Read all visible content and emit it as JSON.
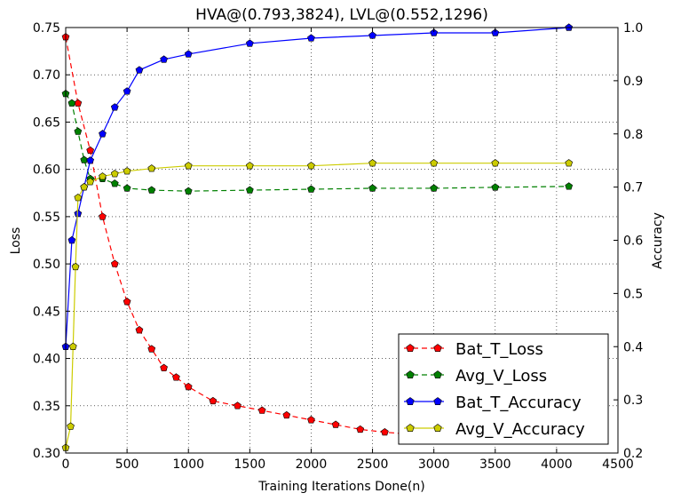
{
  "chart_data": {
    "type": "line",
    "title": "HVA@(0.793,3824), LVL@(0.552,1296)",
    "xlabel": "Training Iterations Done(n)",
    "ylabel": "Loss",
    "y2label": "Accuracy",
    "xlim": [
      0,
      4500
    ],
    "ylim": [
      0.3,
      0.75
    ],
    "y2lim": [
      0.2,
      1.0
    ],
    "x_ticks": [
      0,
      500,
      1000,
      1500,
      2000,
      2500,
      3000,
      3500,
      4000,
      4500
    ],
    "y_ticks": [
      0.3,
      0.35,
      0.4,
      0.45,
      0.5,
      0.55,
      0.6,
      0.65,
      0.7,
      0.75
    ],
    "y2_ticks": [
      0.2,
      0.3,
      0.4,
      0.5,
      0.6,
      0.7,
      0.8,
      0.9,
      1.0
    ],
    "grid": true,
    "legend_position": "bottom-right",
    "series": [
      {
        "name": "Bat_T_Loss",
        "axis": "left",
        "color": "#ff0000",
        "line_style": "dashed",
        "marker": "pentagon",
        "x": [
          0,
          100,
          200,
          300,
          400,
          500,
          600,
          700,
          800,
          900,
          1000,
          1200,
          1400,
          1600,
          1800,
          2000,
          2200,
          2400,
          2600,
          2800
        ],
        "y": [
          0.74,
          0.67,
          0.62,
          0.55,
          0.5,
          0.46,
          0.43,
          0.41,
          0.39,
          0.38,
          0.37,
          0.355,
          0.35,
          0.345,
          0.34,
          0.335,
          0.33,
          0.325,
          0.322,
          0.32
        ]
      },
      {
        "name": "Avg_V_Loss",
        "axis": "left",
        "color": "#008000",
        "line_style": "dashed",
        "marker": "pentagon",
        "x": [
          0,
          50,
          100,
          150,
          200,
          300,
          400,
          500,
          700,
          1000,
          1500,
          2000,
          2500,
          3000,
          3500,
          4100
        ],
        "y": [
          0.68,
          0.67,
          0.64,
          0.61,
          0.59,
          0.59,
          0.585,
          0.58,
          0.578,
          0.577,
          0.578,
          0.579,
          0.58,
          0.58,
          0.581,
          0.582
        ]
      },
      {
        "name": "Bat_T_Accuracy",
        "axis": "right",
        "color": "#0000ff",
        "line_style": "solid",
        "marker": "pentagon",
        "x": [
          0,
          50,
          100,
          150,
          200,
          300,
          400,
          500,
          600,
          800,
          1000,
          1500,
          2000,
          2500,
          3000,
          3500,
          4100
        ],
        "y": [
          0.4,
          0.6,
          0.65,
          0.7,
          0.75,
          0.8,
          0.85,
          0.88,
          0.92,
          0.94,
          0.95,
          0.97,
          0.98,
          0.985,
          0.99,
          0.99,
          1.0
        ]
      },
      {
        "name": "Avg_V_Accuracy",
        "axis": "right",
        "color": "#cccc00",
        "line_style": "solid",
        "marker": "pentagon",
        "x": [
          0,
          40,
          60,
          80,
          100,
          150,
          200,
          300,
          400,
          500,
          700,
          1000,
          1500,
          2000,
          2500,
          3000,
          3500,
          4100
        ],
        "y": [
          0.21,
          0.25,
          0.4,
          0.55,
          0.68,
          0.7,
          0.71,
          0.72,
          0.725,
          0.73,
          0.735,
          0.74,
          0.74,
          0.74,
          0.745,
          0.745,
          0.745,
          0.745
        ]
      }
    ]
  }
}
